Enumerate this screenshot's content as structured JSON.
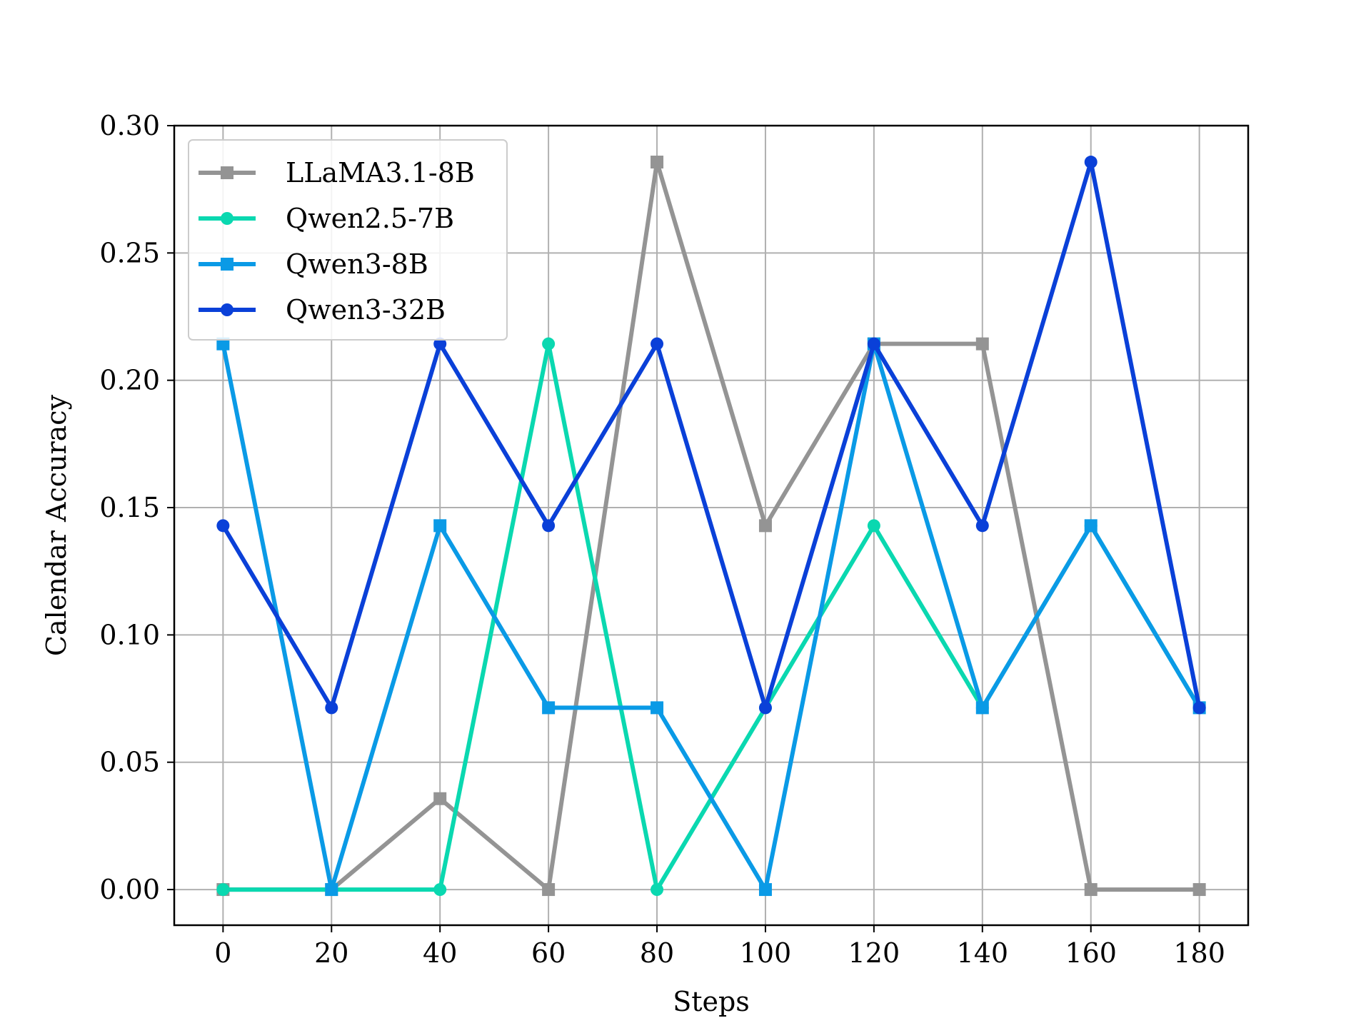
{
  "chart_data": {
    "type": "line",
    "xlabel": "Steps",
    "ylabel": "Calendar Accuracy",
    "x": [
      0,
      20,
      40,
      60,
      80,
      100,
      120,
      140,
      160,
      180
    ],
    "xlim": [
      -9,
      189
    ],
    "ylim": [
      -0.014,
      0.3
    ],
    "xticks": [
      0,
      20,
      40,
      60,
      80,
      100,
      120,
      140,
      160,
      180
    ],
    "yticks": [
      0.0,
      0.05,
      0.1,
      0.15,
      0.2,
      0.25,
      0.3
    ],
    "xtick_labels": [
      "0",
      "20",
      "40",
      "60",
      "80",
      "100",
      "120",
      "140",
      "160",
      "180"
    ],
    "ytick_labels": [
      "0.00",
      "0.05",
      "0.10",
      "0.15",
      "0.20",
      "0.25",
      "0.30"
    ],
    "grid": true,
    "legend_position": "top-left",
    "series": [
      {
        "name": "LLaMA3.1-8B",
        "color": "#949494",
        "marker": "square",
        "values": [
          0.0,
          0.0,
          0.0357,
          0.0,
          0.2857,
          0.1429,
          0.2143,
          0.2143,
          0.0,
          0.0
        ]
      },
      {
        "name": "Qwen2.5-7B",
        "color": "#0ad8b0",
        "marker": "circle",
        "values": [
          0.0,
          0.0,
          0.0,
          0.2143,
          0.0,
          0.0714,
          0.1429,
          0.0714,
          0.1429,
          0.0714
        ]
      },
      {
        "name": "Qwen3-8B",
        "color": "#0a9ae6",
        "marker": "square",
        "values": [
          0.2143,
          0.0,
          0.1429,
          0.0714,
          0.0714,
          0.0,
          0.2143,
          0.0714,
          0.1429,
          0.0714
        ]
      },
      {
        "name": "Qwen3-32B",
        "color": "#0a40d8",
        "marker": "circle",
        "values": [
          0.1429,
          0.0714,
          0.2143,
          0.1429,
          0.2143,
          0.0714,
          0.2143,
          0.1429,
          0.2857,
          0.0714
        ]
      }
    ]
  }
}
